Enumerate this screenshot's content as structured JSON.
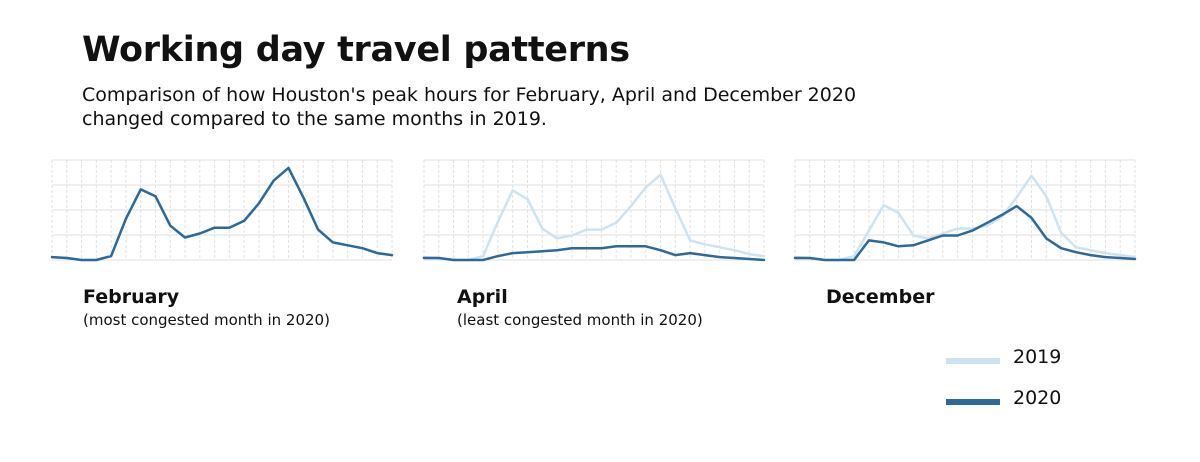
{
  "title": "Working day travel patterns",
  "subtitle_line1": "Comparison of how Houston's peak hours for February, April and December 2020",
  "subtitle_line2": "changed compared to the same months in 2019.",
  "colors": {
    "s2019": "#cde3f2",
    "s2020": "#2b6a9a",
    "grid": "#e1e1e1"
  },
  "chart_data": [
    {
      "type": "line",
      "month": "February",
      "note": "(most congested month in 2020)",
      "x": [
        0,
        1,
        2,
        3,
        4,
        5,
        6,
        7,
        8,
        9,
        10,
        11,
        12,
        13,
        14,
        15,
        16,
        17,
        18,
        19,
        20,
        21,
        22,
        23
      ],
      "ylim": [
        0,
        100
      ],
      "series": [
        {
          "name": "2019",
          "values": [
            3,
            2,
            0,
            0,
            4,
            42,
            72,
            65,
            35,
            23,
            27,
            33,
            33,
            40,
            58,
            81,
            94,
            64,
            31,
            18,
            15,
            12,
            7,
            5
          ]
        },
        {
          "name": "2020",
          "values": [
            3,
            2,
            0,
            0,
            4,
            42,
            72,
            65,
            35,
            23,
            27,
            33,
            33,
            40,
            58,
            81,
            94,
            64,
            31,
            18,
            15,
            12,
            7,
            5
          ]
        }
      ]
    },
    {
      "type": "line",
      "month": "April",
      "note": "(least congested month in 2020)",
      "x": [
        0,
        1,
        2,
        3,
        4,
        5,
        6,
        7,
        8,
        9,
        10,
        11,
        12,
        13,
        14,
        15,
        16,
        17,
        18,
        19,
        20,
        21,
        22,
        23
      ],
      "ylim": [
        0,
        100
      ],
      "series": [
        {
          "name": "2019",
          "values": [
            3,
            2,
            0,
            0,
            4,
            39,
            71,
            62,
            32,
            22,
            25,
            31,
            31,
            38,
            55,
            74,
            87,
            53,
            20,
            16,
            13,
            10,
            6,
            4
          ]
        },
        {
          "name": "2020",
          "values": [
            2,
            2,
            0,
            0,
            0,
            4,
            7,
            8,
            9,
            10,
            12,
            12,
            12,
            14,
            14,
            14,
            10,
            5,
            7,
            5,
            3,
            2,
            1,
            0
          ]
        }
      ]
    },
    {
      "type": "line",
      "month": "December",
      "note": "",
      "x": [
        0,
        1,
        2,
        3,
        4,
        5,
        6,
        7,
        8,
        9,
        10,
        11,
        12,
        13,
        14,
        15,
        16,
        17,
        18,
        19,
        20,
        21,
        22,
        23
      ],
      "ylim": [
        0,
        100
      ],
      "series": [
        {
          "name": "2019",
          "values": [
            3,
            2,
            0,
            0,
            4,
            30,
            56,
            48,
            25,
            22,
            27,
            32,
            32,
            35,
            44,
            64,
            86,
            65,
            28,
            13,
            10,
            7,
            5,
            3
          ]
        },
        {
          "name": "2020",
          "values": [
            2,
            2,
            0,
            0,
            0,
            20,
            18,
            14,
            15,
            20,
            25,
            25,
            30,
            38,
            46,
            55,
            43,
            22,
            12,
            8,
            5,
            3,
            2,
            1
          ]
        }
      ]
    }
  ],
  "legend": [
    {
      "label": "2019"
    },
    {
      "label": "2020"
    }
  ]
}
